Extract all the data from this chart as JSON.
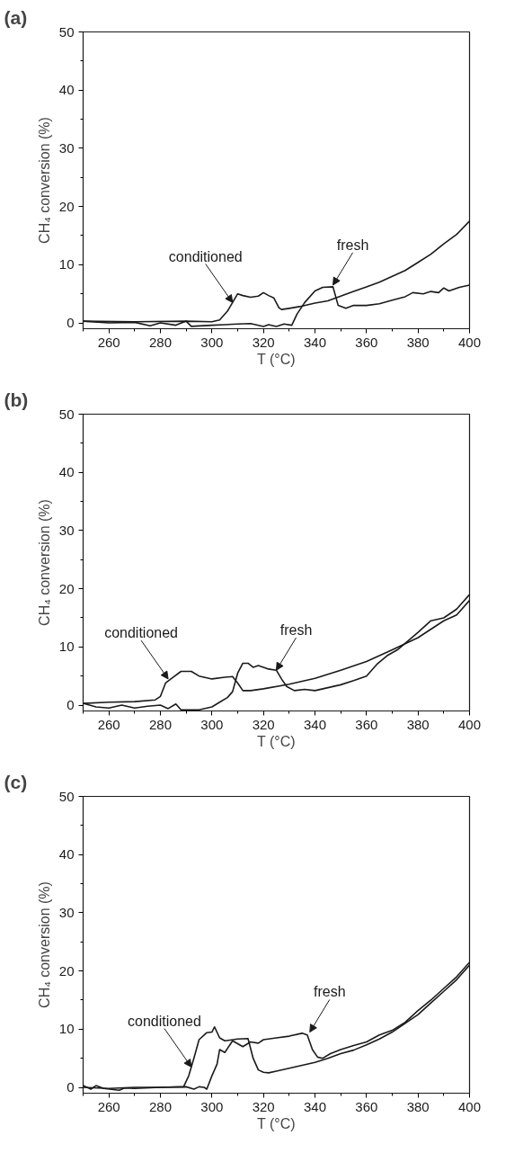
{
  "chart_data": [
    {
      "type": "line",
      "title": "(a)",
      "xlabel": "T (°C)",
      "ylabel": "CH₄ conversion (%)",
      "xlim": [
        250,
        400
      ],
      "ylim": [
        -1,
        50
      ],
      "xticks": [
        260,
        280,
        300,
        320,
        340,
        360,
        380,
        400
      ],
      "yticks": [
        0,
        10,
        20,
        30,
        40,
        50
      ],
      "grid": false,
      "marker": "none",
      "line_style": "solid",
      "series": [
        {
          "color": "#1a1a1a",
          "x": [
            250,
            270,
            290,
            300,
            303,
            306,
            308,
            310,
            312,
            315,
            318,
            320,
            322,
            324,
            326,
            327,
            330,
            334,
            340,
            345,
            350,
            355,
            360,
            365,
            370,
            375,
            380,
            385,
            390,
            395,
            400
          ],
          "values": [
            0.3,
            0.2,
            0.3,
            0.2,
            0.5,
            2,
            3.5,
            5,
            4.7,
            4.4,
            4.6,
            5.2,
            4.7,
            4.3,
            2.6,
            2.3,
            2.5,
            2.8,
            3.4,
            3.8,
            4.6,
            5.4,
            6.2,
            7,
            8,
            9,
            10.4,
            11.8,
            13.6,
            15.2,
            17.5
          ]
        },
        {
          "color": "#1a1a1a",
          "x": [
            250,
            260,
            270,
            276,
            280,
            286,
            290,
            292,
            300,
            305,
            310,
            315,
            320,
            322,
            325,
            328,
            331,
            333,
            336,
            340,
            343,
            347,
            349,
            352,
            355,
            360,
            365,
            370,
            375,
            378,
            382,
            385,
            388,
            390,
            392,
            396,
            400
          ],
          "values": [
            0.3,
            0,
            0.1,
            -0.5,
            0,
            -0.4,
            0.3,
            -0.6,
            -0.4,
            -0.3,
            -0.2,
            -0.1,
            -0.6,
            -0.3,
            -0.6,
            -0.2,
            -0.4,
            1.5,
            3.5,
            5.5,
            6.1,
            6.2,
            3,
            2.5,
            3,
            3,
            3.3,
            3.9,
            4.5,
            5.2,
            5,
            5.4,
            5.2,
            6,
            5.5,
            6.1,
            6.5
          ]
        }
      ],
      "annotations": [
        {
          "text": "conditioned",
          "x": 308,
          "y": 3.5
        },
        {
          "text": "fresh",
          "x": 347,
          "y": 6.5
        }
      ]
    },
    {
      "type": "line",
      "title": "(b)",
      "xlabel": "T (°C)",
      "ylabel": "CH₄ conversion (%)",
      "xlim": [
        250,
        400
      ],
      "ylim": [
        -1,
        50
      ],
      "xticks": [
        260,
        280,
        300,
        320,
        340,
        360,
        380,
        400
      ],
      "yticks": [
        0,
        10,
        20,
        30,
        40,
        50
      ],
      "grid": false,
      "marker": "none",
      "line_style": "solid",
      "series": [
        {
          "color": "#1a1a1a",
          "x": [
            250,
            260,
            270,
            278,
            280,
            282,
            285,
            288,
            292,
            295,
            300,
            305,
            308,
            310,
            312,
            315,
            320,
            330,
            340,
            350,
            360,
            370,
            380,
            390,
            395,
            400
          ],
          "values": [
            0.3,
            0.5,
            0.6,
            0.9,
            1.5,
            3.8,
            4.8,
            5.8,
            5.8,
            5,
            4.5,
            4.8,
            4.9,
            3.8,
            2.5,
            2.5,
            2.8,
            3.6,
            4.6,
            6,
            7.5,
            9.5,
            11.6,
            14.5,
            15.5,
            18
          ]
        },
        {
          "color": "#1a1a1a",
          "x": [
            250,
            255,
            260,
            265,
            270,
            275,
            280,
            283,
            286,
            288,
            295,
            300,
            303,
            306,
            308,
            310,
            312,
            314,
            316,
            318,
            322,
            325,
            327,
            329,
            332,
            336,
            340,
            345,
            350,
            355,
            360,
            364,
            368,
            372,
            376,
            380,
            385,
            390,
            395,
            400
          ],
          "values": [
            0.3,
            -0.3,
            -0.5,
            0,
            -0.5,
            -0.2,
            0,
            -0.6,
            0.2,
            -0.8,
            -0.8,
            -0.3,
            0.5,
            1.3,
            2.3,
            5.5,
            7.2,
            7.2,
            6.5,
            6.8,
            6.2,
            6,
            4.5,
            3.2,
            2.5,
            2.7,
            2.5,
            3,
            3.5,
            4.2,
            5,
            7,
            8.5,
            9.5,
            11,
            12.5,
            14.5,
            15,
            16.5,
            19
          ]
        }
      ],
      "annotations": [
        {
          "text": "conditioned",
          "x": 283,
          "y": 4.5
        },
        {
          "text": "fresh",
          "x": 325,
          "y": 6
        }
      ]
    },
    {
      "type": "line",
      "title": "(c)",
      "xlabel": "T (°C)",
      "ylabel": "CH₄ conversion (%)",
      "xlim": [
        250,
        400
      ],
      "ylim": [
        -1,
        50
      ],
      "xticks": [
        260,
        280,
        300,
        320,
        340,
        360,
        380,
        400
      ],
      "yticks": [
        0,
        10,
        20,
        30,
        40,
        50
      ],
      "grid": false,
      "marker": "none",
      "line_style": "solid",
      "series": [
        {
          "color": "#1a1a1a",
          "x": [
            250,
            260,
            270,
            280,
            289,
            291,
            293,
            295,
            298,
            300,
            301,
            303,
            305,
            310,
            314,
            316,
            318,
            320,
            322,
            325,
            330,
            335,
            340,
            345,
            350,
            355,
            360,
            365,
            370,
            375,
            380,
            385,
            390,
            395,
            400
          ],
          "values": [
            0,
            -0.2,
            0,
            0,
            0.1,
            2,
            5,
            8.2,
            9.4,
            9.5,
            10.4,
            8.5,
            8,
            8.3,
            8.4,
            5,
            3,
            2.6,
            2.5,
            2.8,
            3.3,
            3.8,
            4.3,
            5,
            5.8,
            6.4,
            7.3,
            8.3,
            9.5,
            11,
            12.5,
            14.5,
            16.5,
            18.5,
            21
          ]
        },
        {
          "color": "#1a1a1a",
          "x": [
            250,
            253,
            255,
            258,
            264,
            266,
            270,
            280,
            290,
            293,
            295,
            297,
            298,
            300,
            302,
            303,
            305,
            308,
            310,
            312,
            315,
            318,
            320,
            325,
            330,
            335,
            337,
            339,
            341,
            343,
            346,
            350,
            355,
            360,
            365,
            370,
            375,
            380,
            385,
            390,
            395,
            400
          ],
          "values": [
            0.3,
            -0.3,
            0.3,
            -0.2,
            -0.5,
            -0.1,
            -0.2,
            0,
            0.1,
            -0.3,
            0.1,
            0,
            -0.3,
            2,
            4,
            6.5,
            6,
            8,
            7.5,
            7,
            7.8,
            7.6,
            8.2,
            8.5,
            8.8,
            9.3,
            9,
            6.5,
            5.2,
            5,
            5.8,
            6.5,
            7.2,
            7.8,
            9,
            9.8,
            11.2,
            13.2,
            15,
            17,
            19,
            21.5
          ]
        }
      ],
      "annotations": [
        {
          "text": "conditioned",
          "x": 292,
          "y": 3.5
        },
        {
          "text": "fresh",
          "x": 338,
          "y": 9.5
        }
      ]
    }
  ]
}
